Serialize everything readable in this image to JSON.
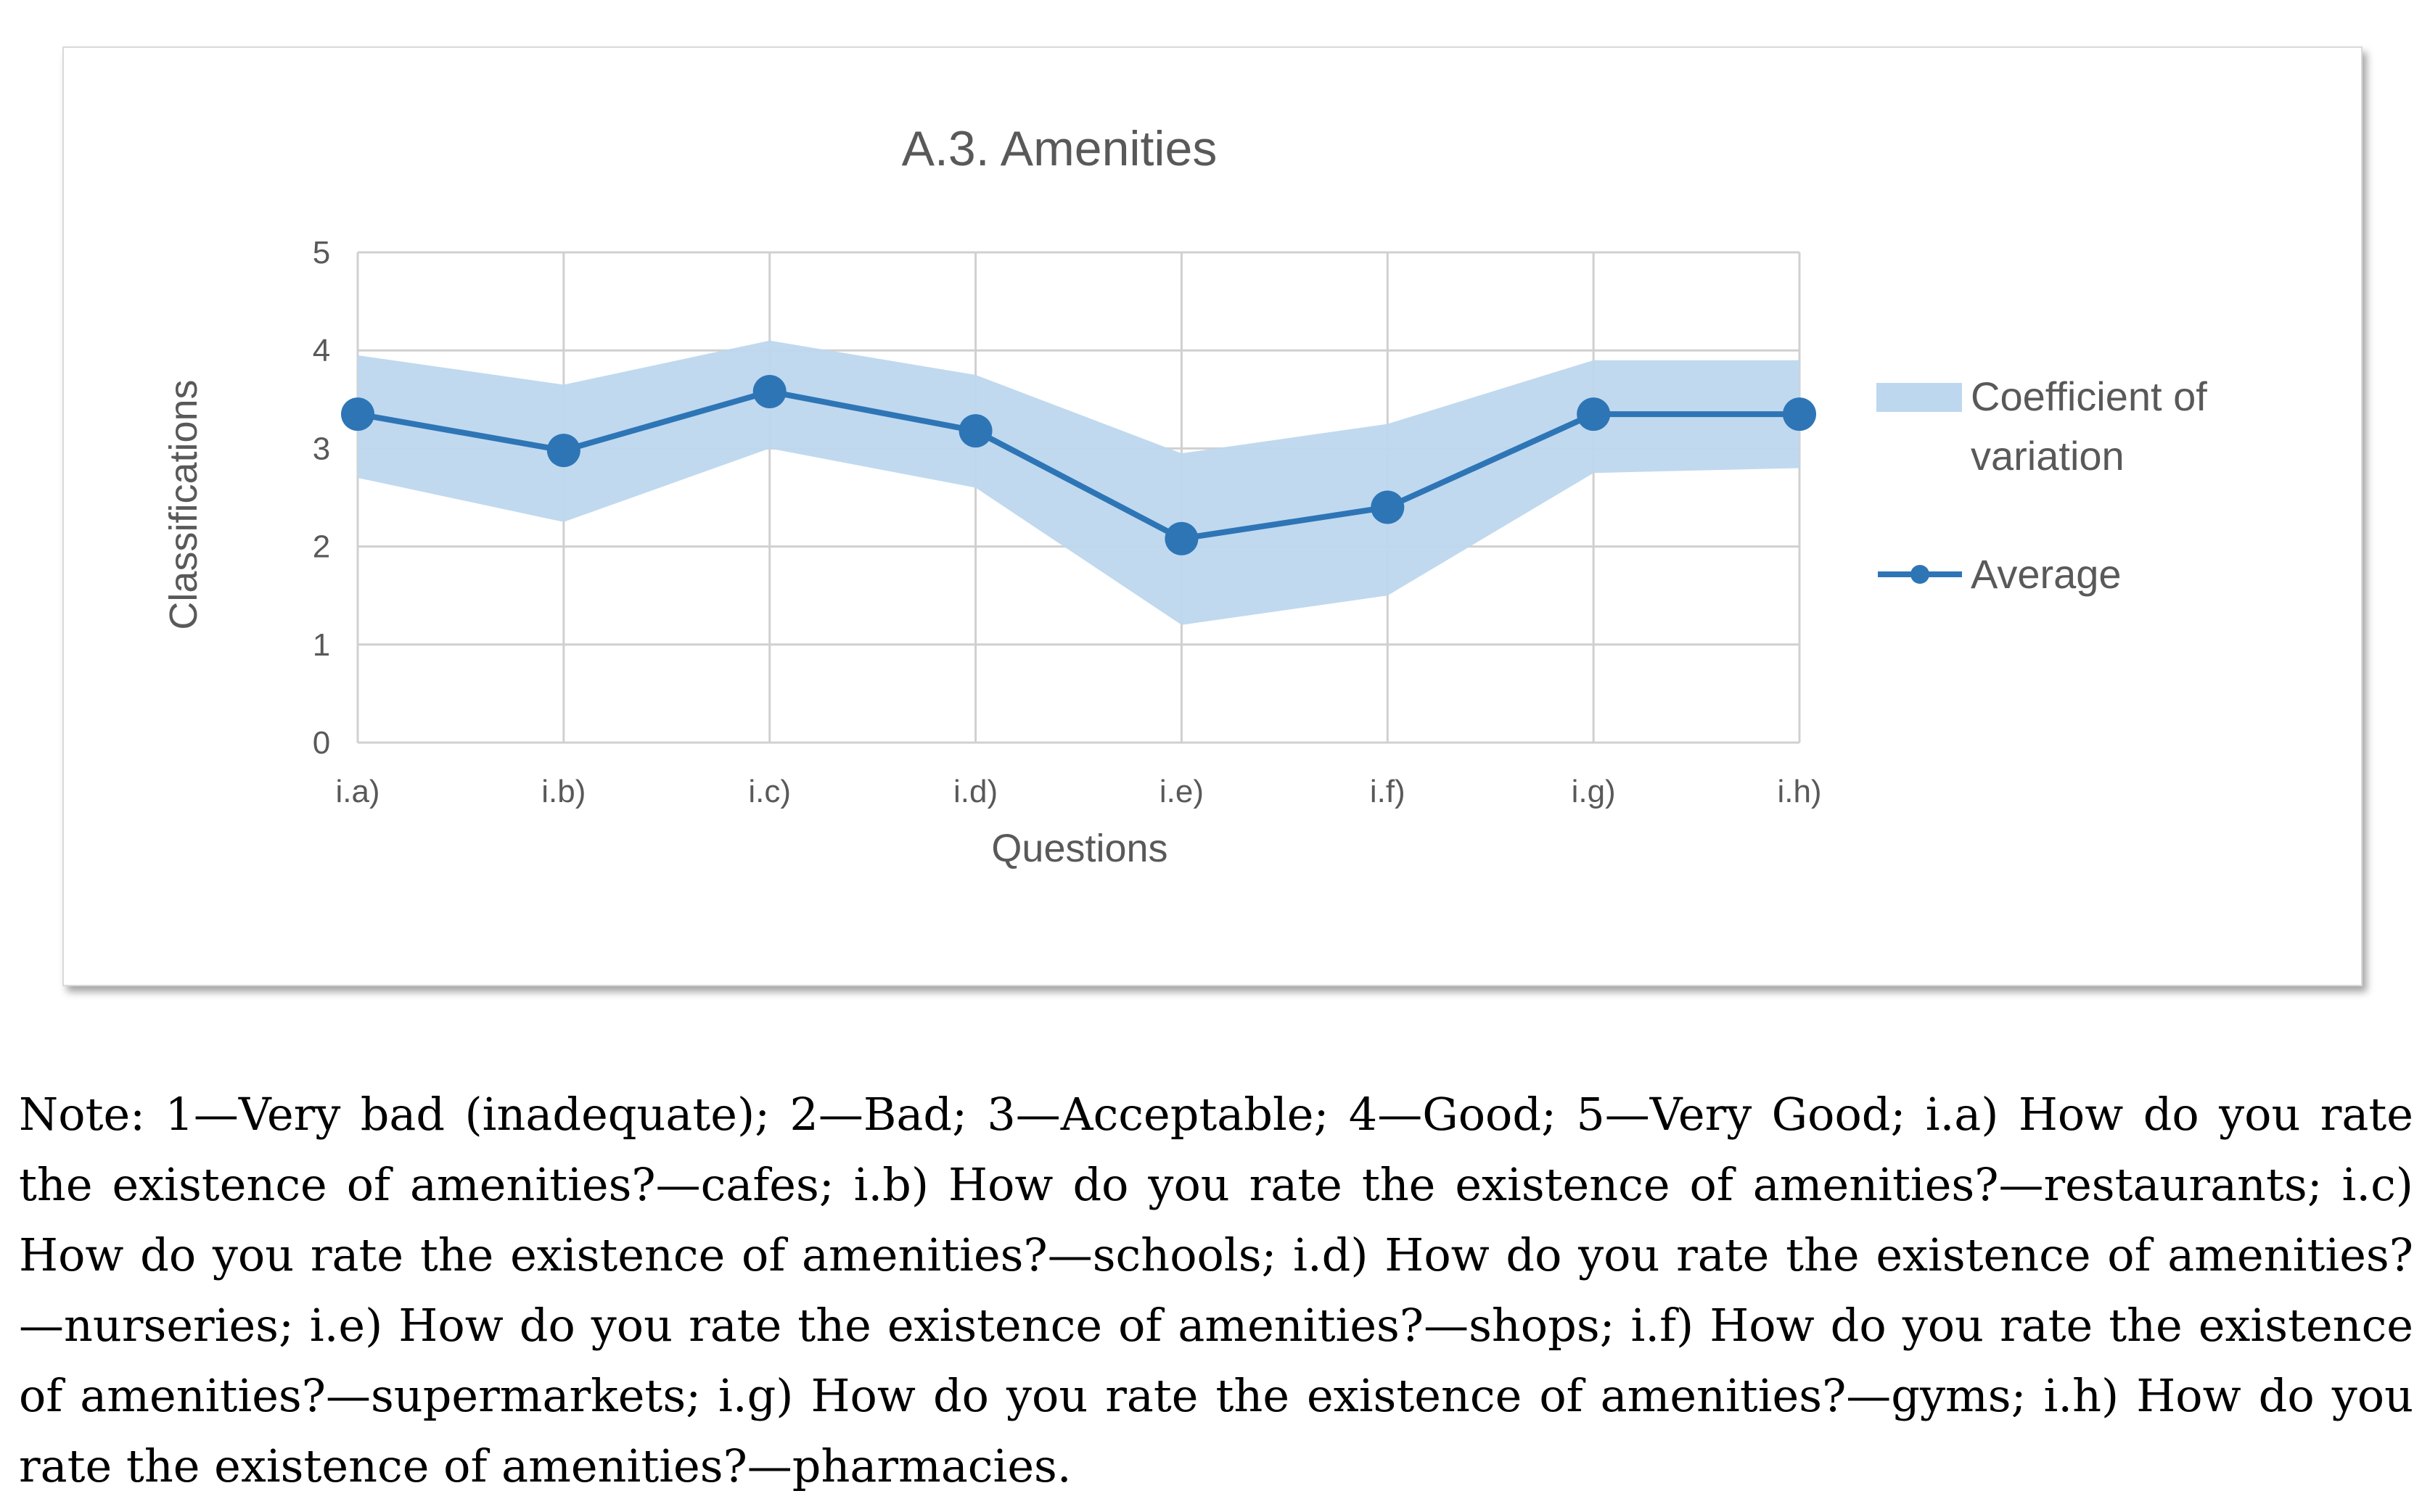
{
  "chart_data": {
    "type": "line",
    "title": "A.3. Amenities",
    "xlabel": "Questions",
    "ylabel": "Classifications",
    "categories": [
      "i.a)",
      "i.b)",
      "i.c)",
      "i.d)",
      "i.e)",
      "i.f)",
      "i.g)",
      "i.h)"
    ],
    "ylim": [
      0,
      5
    ],
    "yticks": [
      "0",
      "1",
      "2",
      "3",
      "4",
      "5"
    ],
    "grid": true,
    "legend_position": "right",
    "series": [
      {
        "name": "Coefficient of variation",
        "type": "area-band",
        "lower": [
          2.7,
          2.25,
          3.0,
          2.6,
          1.2,
          1.5,
          2.75,
          2.8
        ],
        "upper": [
          3.95,
          3.65,
          4.1,
          3.75,
          2.95,
          3.25,
          3.9,
          3.9
        ],
        "color": "#bdd7ee"
      },
      {
        "name": "Average",
        "type": "line",
        "values": [
          3.35,
          2.98,
          3.58,
          3.18,
          2.08,
          2.4,
          3.35,
          3.35
        ],
        "color": "#2e75b6"
      }
    ],
    "legend": {
      "band_line1": "Coefficient of",
      "band_line2": "variation",
      "line_label": "Average"
    }
  },
  "note": "Note: 1—Very bad (inadequate); 2—Bad; 3—Acceptable; 4—Good; 5—Very Good; i.a) How do you rate the existence of amenities?—cafes; i.b) How do you rate the existence of amenities?—restaurants; i.c) How do you rate the existence of amenities?—schools; i.d) How do you rate the existence of amenities?—nurseries; i.e) How do you rate the existence of amenities?—shops; i.f) How do you rate the existence of amenities?—supermarkets; i.g) How do you rate the existence of amenities?—gyms; i.h) How do you rate the existence of amenities?—pharmacies."
}
